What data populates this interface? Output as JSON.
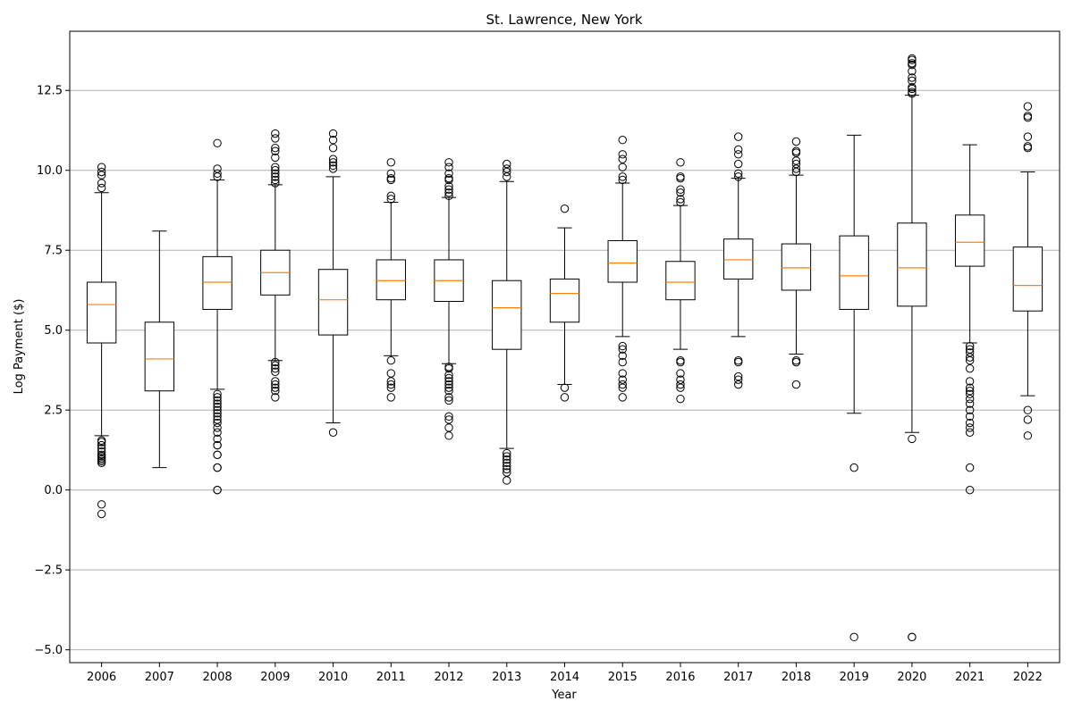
{
  "chart_data": {
    "type": "box",
    "title": "St. Lawrence, New York",
    "xlabel": "Year",
    "ylabel": "Log Payment ($)",
    "ylim": [
      -5.4,
      14.35
    ],
    "yticks": [
      -5.0,
      -2.5,
      0.0,
      2.5,
      5.0,
      7.5,
      10.0,
      12.5
    ],
    "ytick_labels": [
      "−5.0",
      "−2.5",
      "0.0",
      "2.5",
      "5.0",
      "7.5",
      "10.0",
      "12.5"
    ],
    "grid": "y-axis",
    "median_color": "#ff7f0e",
    "box_color": "#000000",
    "categories": [
      "2006",
      "2007",
      "2008",
      "2009",
      "2010",
      "2011",
      "2012",
      "2013",
      "2014",
      "2015",
      "2016",
      "2017",
      "2018",
      "2019",
      "2020",
      "2021",
      "2022"
    ],
    "boxes": [
      {
        "year": "2006",
        "whisker_low": 1.7,
        "q1": 4.6,
        "median": 5.8,
        "q3": 6.5,
        "whisker_high": 9.3,
        "outliers": [
          -0.75,
          -0.45,
          0.85,
          0.9,
          0.95,
          1.0,
          1.05,
          1.1,
          1.2,
          1.3,
          1.4,
          1.5,
          1.55,
          9.45,
          9.6,
          9.85,
          9.95,
          10.1
        ]
      },
      {
        "year": "2007",
        "whisker_low": 0.7,
        "q1": 3.1,
        "median": 4.1,
        "q3": 5.25,
        "whisker_high": 8.1,
        "outliers": []
      },
      {
        "year": "2008",
        "whisker_low": 3.15,
        "q1": 5.65,
        "median": 6.5,
        "q3": 7.3,
        "whisker_high": 9.7,
        "outliers": [
          0.0,
          0.0,
          0.7,
          0.7,
          1.1,
          1.1,
          1.4,
          1.4,
          1.6,
          1.8,
          1.95,
          2.1,
          2.2,
          2.3,
          2.4,
          2.5,
          2.6,
          2.7,
          2.8,
          2.9,
          3.0,
          9.8,
          9.9,
          10.05,
          10.85
        ]
      },
      {
        "year": "2009",
        "whisker_low": 4.05,
        "q1": 6.1,
        "median": 6.8,
        "q3": 7.5,
        "whisker_high": 9.55,
        "outliers": [
          2.9,
          3.1,
          3.2,
          3.3,
          3.4,
          3.7,
          3.8,
          3.9,
          4.0,
          9.6,
          9.7,
          9.8,
          9.9,
          10.0,
          10.1,
          10.4,
          10.6,
          10.7,
          11.0,
          11.15
        ]
      },
      {
        "year": "2010",
        "whisker_low": 2.1,
        "q1": 4.85,
        "median": 5.95,
        "q3": 6.9,
        "whisker_high": 9.8,
        "outliers": [
          1.8,
          10.05,
          10.15,
          10.25,
          10.35,
          10.7,
          10.95,
          11.15
        ]
      },
      {
        "year": "2011",
        "whisker_low": 4.2,
        "q1": 5.95,
        "median": 6.55,
        "q3": 7.2,
        "whisker_high": 9.0,
        "outliers": [
          2.9,
          3.2,
          3.3,
          3.4,
          3.65,
          4.05,
          9.1,
          9.2,
          9.7,
          9.75,
          9.9,
          10.25
        ]
      },
      {
        "year": "2012",
        "whisker_low": 3.95,
        "q1": 5.9,
        "median": 6.55,
        "q3": 7.2,
        "whisker_high": 9.15,
        "outliers": [
          1.7,
          1.95,
          2.2,
          2.3,
          2.8,
          2.9,
          3.1,
          3.2,
          3.3,
          3.4,
          3.5,
          3.6,
          3.8,
          3.85,
          9.2,
          9.3,
          9.4,
          9.5,
          9.7,
          9.75,
          9.9,
          10.1,
          10.25
        ]
      },
      {
        "year": "2013",
        "whisker_low": 1.3,
        "q1": 4.4,
        "median": 5.7,
        "q3": 6.55,
        "whisker_high": 9.65,
        "outliers": [
          0.3,
          0.55,
          0.65,
          0.75,
          0.85,
          0.95,
          1.05,
          1.15,
          9.8,
          9.95,
          10.05,
          10.2
        ]
      },
      {
        "year": "2014",
        "whisker_low": 3.3,
        "q1": 5.25,
        "median": 6.15,
        "q3": 6.6,
        "whisker_high": 8.2,
        "outliers": [
          2.9,
          3.2,
          8.8
        ]
      },
      {
        "year": "2015",
        "whisker_low": 4.8,
        "q1": 6.5,
        "median": 7.1,
        "q3": 7.8,
        "whisker_high": 9.6,
        "outliers": [
          2.9,
          3.2,
          3.3,
          3.45,
          3.65,
          4.0,
          4.2,
          4.4,
          4.5,
          9.7,
          9.8,
          10.1,
          10.35,
          10.5,
          10.95
        ]
      },
      {
        "year": "2016",
        "whisker_low": 4.4,
        "q1": 5.95,
        "median": 6.5,
        "q3": 7.15,
        "whisker_high": 8.9,
        "outliers": [
          2.85,
          3.2,
          3.3,
          3.45,
          3.65,
          4.0,
          4.05,
          9.0,
          9.1,
          9.3,
          9.4,
          9.75,
          9.8,
          10.25
        ]
      },
      {
        "year": "2017",
        "whisker_low": 4.8,
        "q1": 6.6,
        "median": 7.2,
        "q3": 7.85,
        "whisker_high": 9.75,
        "outliers": [
          3.3,
          3.45,
          3.55,
          4.0,
          4.05,
          9.8,
          9.9,
          10.2,
          10.5,
          10.65,
          11.05
        ]
      },
      {
        "year": "2018",
        "whisker_low": 4.25,
        "q1": 6.25,
        "median": 6.95,
        "q3": 7.7,
        "whisker_high": 9.85,
        "outliers": [
          3.3,
          4.0,
          4.05,
          9.95,
          10.05,
          10.2,
          10.3,
          10.55,
          10.6,
          10.9
        ]
      },
      {
        "year": "2019",
        "whisker_low": 2.4,
        "q1": 5.65,
        "median": 6.7,
        "q3": 7.95,
        "whisker_high": 11.1,
        "outliers": [
          -4.6,
          0.7
        ]
      },
      {
        "year": "2020",
        "whisker_low": 1.8,
        "q1": 5.75,
        "median": 6.95,
        "q3": 8.35,
        "whisker_high": 12.35,
        "outliers": [
          -4.6,
          -4.6,
          1.6,
          12.4,
          12.45,
          12.55,
          12.6,
          12.8,
          12.9,
          13.1,
          13.3,
          13.35,
          13.45,
          13.5
        ]
      },
      {
        "year": "2021",
        "whisker_low": 4.6,
        "q1": 7.0,
        "median": 7.75,
        "q3": 8.6,
        "whisker_high": 10.8,
        "outliers": [
          0.0,
          0.7,
          1.8,
          1.95,
          2.1,
          2.3,
          2.5,
          2.7,
          2.85,
          3.0,
          3.1,
          3.2,
          3.4,
          3.8,
          4.05,
          4.15,
          4.3,
          4.4,
          4.5
        ]
      },
      {
        "year": "2022",
        "whisker_low": 2.95,
        "q1": 5.6,
        "median": 6.4,
        "q3": 7.6,
        "whisker_high": 9.95,
        "outliers": [
          1.7,
          2.2,
          2.5,
          10.7,
          10.75,
          11.05,
          11.65,
          11.7,
          12.0
        ]
      }
    ]
  }
}
